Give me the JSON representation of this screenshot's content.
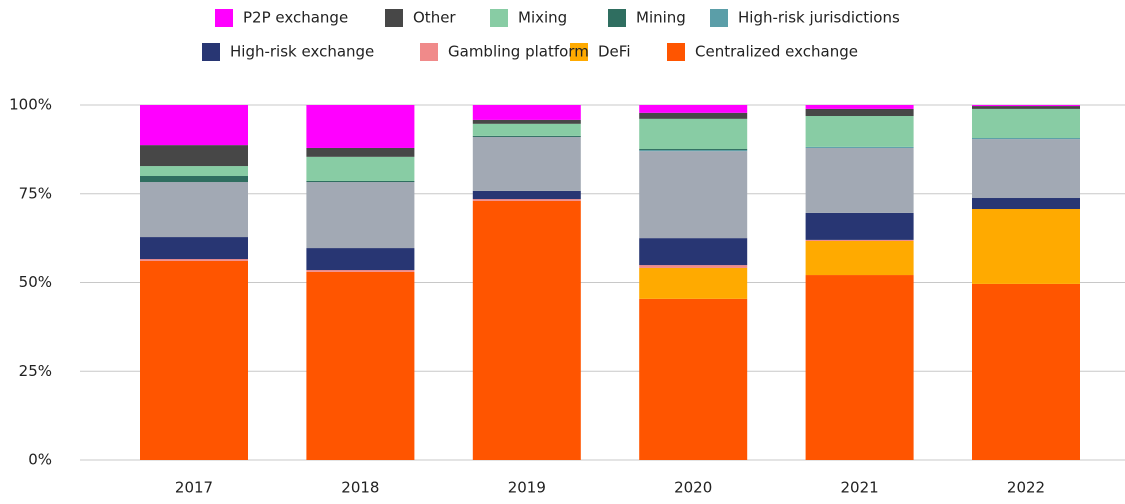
{
  "chart_data": {
    "type": "stacked_bar",
    "categories": [
      "2017",
      "2018",
      "2019",
      "2020",
      "2021",
      "2022"
    ],
    "series": [
      {
        "name": "Centralized exchange",
        "color": "#ff5500",
        "values": [
          56.1,
          53.0,
          73.0,
          45.4,
          52.1,
          49.6
        ]
      },
      {
        "name": "DeFi",
        "color": "#ffaa00",
        "values": [
          0,
          0,
          0,
          8.7,
          9.6,
          21.1
        ]
      },
      {
        "name": "Gambling platform",
        "color": "#f08a8a",
        "values": [
          0.5,
          0.5,
          0.5,
          0.8,
          0.3,
          0
        ]
      },
      {
        "name": "High-risk exchange",
        "color": "#283673",
        "values": [
          6.2,
          6.2,
          2.3,
          7.6,
          7.6,
          3.1
        ]
      },
      {
        "name": null,
        "color": "#a2a9b4",
        "values": [
          15.5,
          18.6,
          15.2,
          24.5,
          18.3,
          16.6
        ]
      },
      {
        "name": "High-risk jurisdictions",
        "color": "#5b9ea8",
        "values": [
          0,
          0,
          0,
          0.3,
          0.3,
          0.3
        ]
      },
      {
        "name": "Mining",
        "color": "#2f6e60",
        "values": [
          1.7,
          0.3,
          0.3,
          0.3,
          0,
          0
        ]
      },
      {
        "name": "Mixing",
        "color": "#88cca4",
        "values": [
          2.8,
          6.8,
          3.4,
          8.5,
          8.7,
          8.2
        ]
      },
      {
        "name": "Other",
        "color": "#474747",
        "values": [
          5.9,
          2.5,
          1.1,
          1.7,
          2.0,
          0.8
        ]
      },
      {
        "name": "P2P exchange",
        "color": "#ff00ff",
        "values": [
          11.3,
          12.1,
          4.2,
          2.2,
          1.1,
          0.3
        ]
      }
    ],
    "ylim": [
      0,
      100
    ],
    "yticks": [
      {
        "value": 0,
        "label": "0%"
      },
      {
        "value": 25,
        "label": "25%"
      },
      {
        "value": 50,
        "label": "50%"
      },
      {
        "value": 75,
        "label": "75%"
      },
      {
        "value": 100,
        "label": "100%"
      }
    ],
    "grid": true
  }
}
